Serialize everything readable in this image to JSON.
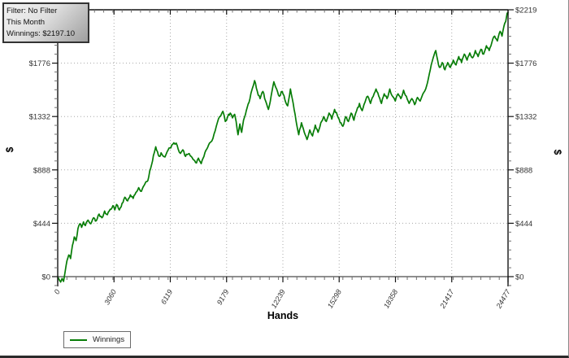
{
  "tooltip": {
    "filter_line": "Filter: No Filter",
    "period_line": "This Month",
    "winnings_line": "Winnings: $2197.10"
  },
  "legend": {
    "label": "Winnings"
  },
  "colors": {
    "line": "#077d07",
    "grid": "#a8a8a8",
    "axis": "#141414",
    "zero_line": "#4a4a4a",
    "tick_minor": "#6e6e6e",
    "label": "#333333",
    "tooltip_border": "#333333",
    "legend_border": "#6b6b6b"
  },
  "chart_data": {
    "type": "line",
    "title": "",
    "xlabel": "Hands",
    "ylabel_left": "$",
    "ylabel_right": "$",
    "x_tick_labels": [
      "0",
      "3060",
      "6119",
      "9179",
      "12239",
      "15298",
      "18358",
      "21417",
      "24477"
    ],
    "y_tick_labels": [
      "$0",
      "$444",
      "$888",
      "$1332",
      "$1776",
      "$2219"
    ],
    "xlim": [
      0,
      24477
    ],
    "ylim": [
      -80,
      2219
    ],
    "grid": true,
    "legend_position": "bottom-left",
    "series": [
      {
        "name": "Winnings",
        "color": "#077d07",
        "final_value": 2197.1,
        "points": [
          [
            0,
            0
          ],
          [
            80,
            -25
          ],
          [
            160,
            -45
          ],
          [
            240,
            -15
          ],
          [
            320,
            -40
          ],
          [
            400,
            40
          ],
          [
            500,
            130
          ],
          [
            600,
            180
          ],
          [
            700,
            150
          ],
          [
            800,
            260
          ],
          [
            900,
            330
          ],
          [
            1000,
            300
          ],
          [
            1100,
            400
          ],
          [
            1200,
            440
          ],
          [
            1300,
            410
          ],
          [
            1400,
            455
          ],
          [
            1500,
            425
          ],
          [
            1650,
            470
          ],
          [
            1800,
            440
          ],
          [
            1950,
            490
          ],
          [
            2100,
            465
          ],
          [
            2250,
            520
          ],
          [
            2400,
            490
          ],
          [
            2550,
            545
          ],
          [
            2700,
            515
          ],
          [
            2850,
            560
          ],
          [
            3000,
            590
          ],
          [
            3100,
            555
          ],
          [
            3200,
            600
          ],
          [
            3350,
            555
          ],
          [
            3500,
            610
          ],
          [
            3650,
            660
          ],
          [
            3800,
            630
          ],
          [
            3950,
            680
          ],
          [
            4100,
            650
          ],
          [
            4250,
            700
          ],
          [
            4400,
            740
          ],
          [
            4550,
            710
          ],
          [
            4700,
            760
          ],
          [
            4850,
            790
          ],
          [
            4950,
            830
          ],
          [
            5050,
            900
          ],
          [
            5150,
            960
          ],
          [
            5250,
            1030
          ],
          [
            5330,
            1080
          ],
          [
            5420,
            1040
          ],
          [
            5520,
            1000
          ],
          [
            5620,
            1030
          ],
          [
            5750,
            1000
          ],
          [
            5830,
            995
          ],
          [
            5950,
            1040
          ],
          [
            6100,
            1070
          ],
          [
            6250,
            1100
          ],
          [
            6440,
            1110
          ],
          [
            6550,
            1060
          ],
          [
            6670,
            1025
          ],
          [
            6800,
            1055
          ],
          [
            6950,
            1000
          ],
          [
            7100,
            1020
          ],
          [
            7250,
            1000
          ],
          [
            7400,
            970
          ],
          [
            7540,
            945
          ],
          [
            7650,
            985
          ],
          [
            7800,
            940
          ],
          [
            7950,
            1000
          ],
          [
            8100,
            1060
          ],
          [
            8250,
            1110
          ],
          [
            8440,
            1150
          ],
          [
            8620,
            1250
          ],
          [
            8800,
            1330
          ],
          [
            8980,
            1375
          ],
          [
            9110,
            1290
          ],
          [
            9240,
            1330
          ],
          [
            9380,
            1360
          ],
          [
            9500,
            1320
          ],
          [
            9620,
            1350
          ],
          [
            9700,
            1290
          ],
          [
            9800,
            1180
          ],
          [
            9900,
            1270
          ],
          [
            10000,
            1200
          ],
          [
            10100,
            1300
          ],
          [
            10250,
            1380
          ],
          [
            10400,
            1450
          ],
          [
            10550,
            1550
          ],
          [
            10700,
            1630
          ],
          [
            10850,
            1540
          ],
          [
            11000,
            1480
          ],
          [
            11150,
            1540
          ],
          [
            11300,
            1460
          ],
          [
            11450,
            1390
          ],
          [
            11600,
            1500
          ],
          [
            11750,
            1620
          ],
          [
            11900,
            1560
          ],
          [
            12050,
            1500
          ],
          [
            12200,
            1540
          ],
          [
            12350,
            1470
          ],
          [
            12500,
            1420
          ],
          [
            12650,
            1560
          ],
          [
            12800,
            1440
          ],
          [
            12950,
            1300
          ],
          [
            13100,
            1180
          ],
          [
            13250,
            1280
          ],
          [
            13400,
            1200
          ],
          [
            13550,
            1140
          ],
          [
            13700,
            1220
          ],
          [
            13850,
            1170
          ],
          [
            14000,
            1260
          ],
          [
            14150,
            1200
          ],
          [
            14300,
            1280
          ],
          [
            14450,
            1330
          ],
          [
            14600,
            1290
          ],
          [
            14750,
            1360
          ],
          [
            14900,
            1310
          ],
          [
            15050,
            1390
          ],
          [
            15200,
            1340
          ],
          [
            15350,
            1280
          ],
          [
            15500,
            1250
          ],
          [
            15650,
            1330
          ],
          [
            15800,
            1290
          ],
          [
            15950,
            1360
          ],
          [
            16100,
            1300
          ],
          [
            16250,
            1380
          ],
          [
            16400,
            1440
          ],
          [
            16550,
            1380
          ],
          [
            16700,
            1450
          ],
          [
            16850,
            1500
          ],
          [
            17000,
            1440
          ],
          [
            17150,
            1500
          ],
          [
            17300,
            1560
          ],
          [
            17450,
            1500
          ],
          [
            17600,
            1440
          ],
          [
            17750,
            1520
          ],
          [
            17900,
            1480
          ],
          [
            18050,
            1560
          ],
          [
            18200,
            1500
          ],
          [
            18350,
            1460
          ],
          [
            18500,
            1520
          ],
          [
            18650,
            1480
          ],
          [
            18800,
            1550
          ],
          [
            18950,
            1500
          ],
          [
            19100,
            1440
          ],
          [
            19250,
            1480
          ],
          [
            19400,
            1430
          ],
          [
            19550,
            1490
          ],
          [
            19700,
            1460
          ],
          [
            19850,
            1520
          ],
          [
            20000,
            1560
          ],
          [
            20150,
            1650
          ],
          [
            20300,
            1760
          ],
          [
            20450,
            1840
          ],
          [
            20550,
            1880
          ],
          [
            20650,
            1800
          ],
          [
            20750,
            1740
          ],
          [
            20900,
            1780
          ],
          [
            21050,
            1720
          ],
          [
            21200,
            1780
          ],
          [
            21350,
            1740
          ],
          [
            21500,
            1800
          ],
          [
            21650,
            1760
          ],
          [
            21800,
            1830
          ],
          [
            21950,
            1780
          ],
          [
            22100,
            1850
          ],
          [
            22250,
            1800
          ],
          [
            22400,
            1860
          ],
          [
            22550,
            1820
          ],
          [
            22700,
            1880
          ],
          [
            22850,
            1830
          ],
          [
            23000,
            1890
          ],
          [
            23150,
            1850
          ],
          [
            23300,
            1920
          ],
          [
            23450,
            1880
          ],
          [
            23600,
            1950
          ],
          [
            23750,
            2000
          ],
          [
            23900,
            1960
          ],
          [
            24050,
            2040
          ],
          [
            24150,
            2000
          ],
          [
            24250,
            2080
          ],
          [
            24350,
            2120
          ],
          [
            24430,
            2190
          ],
          [
            24477,
            2197
          ]
        ]
      }
    ]
  }
}
